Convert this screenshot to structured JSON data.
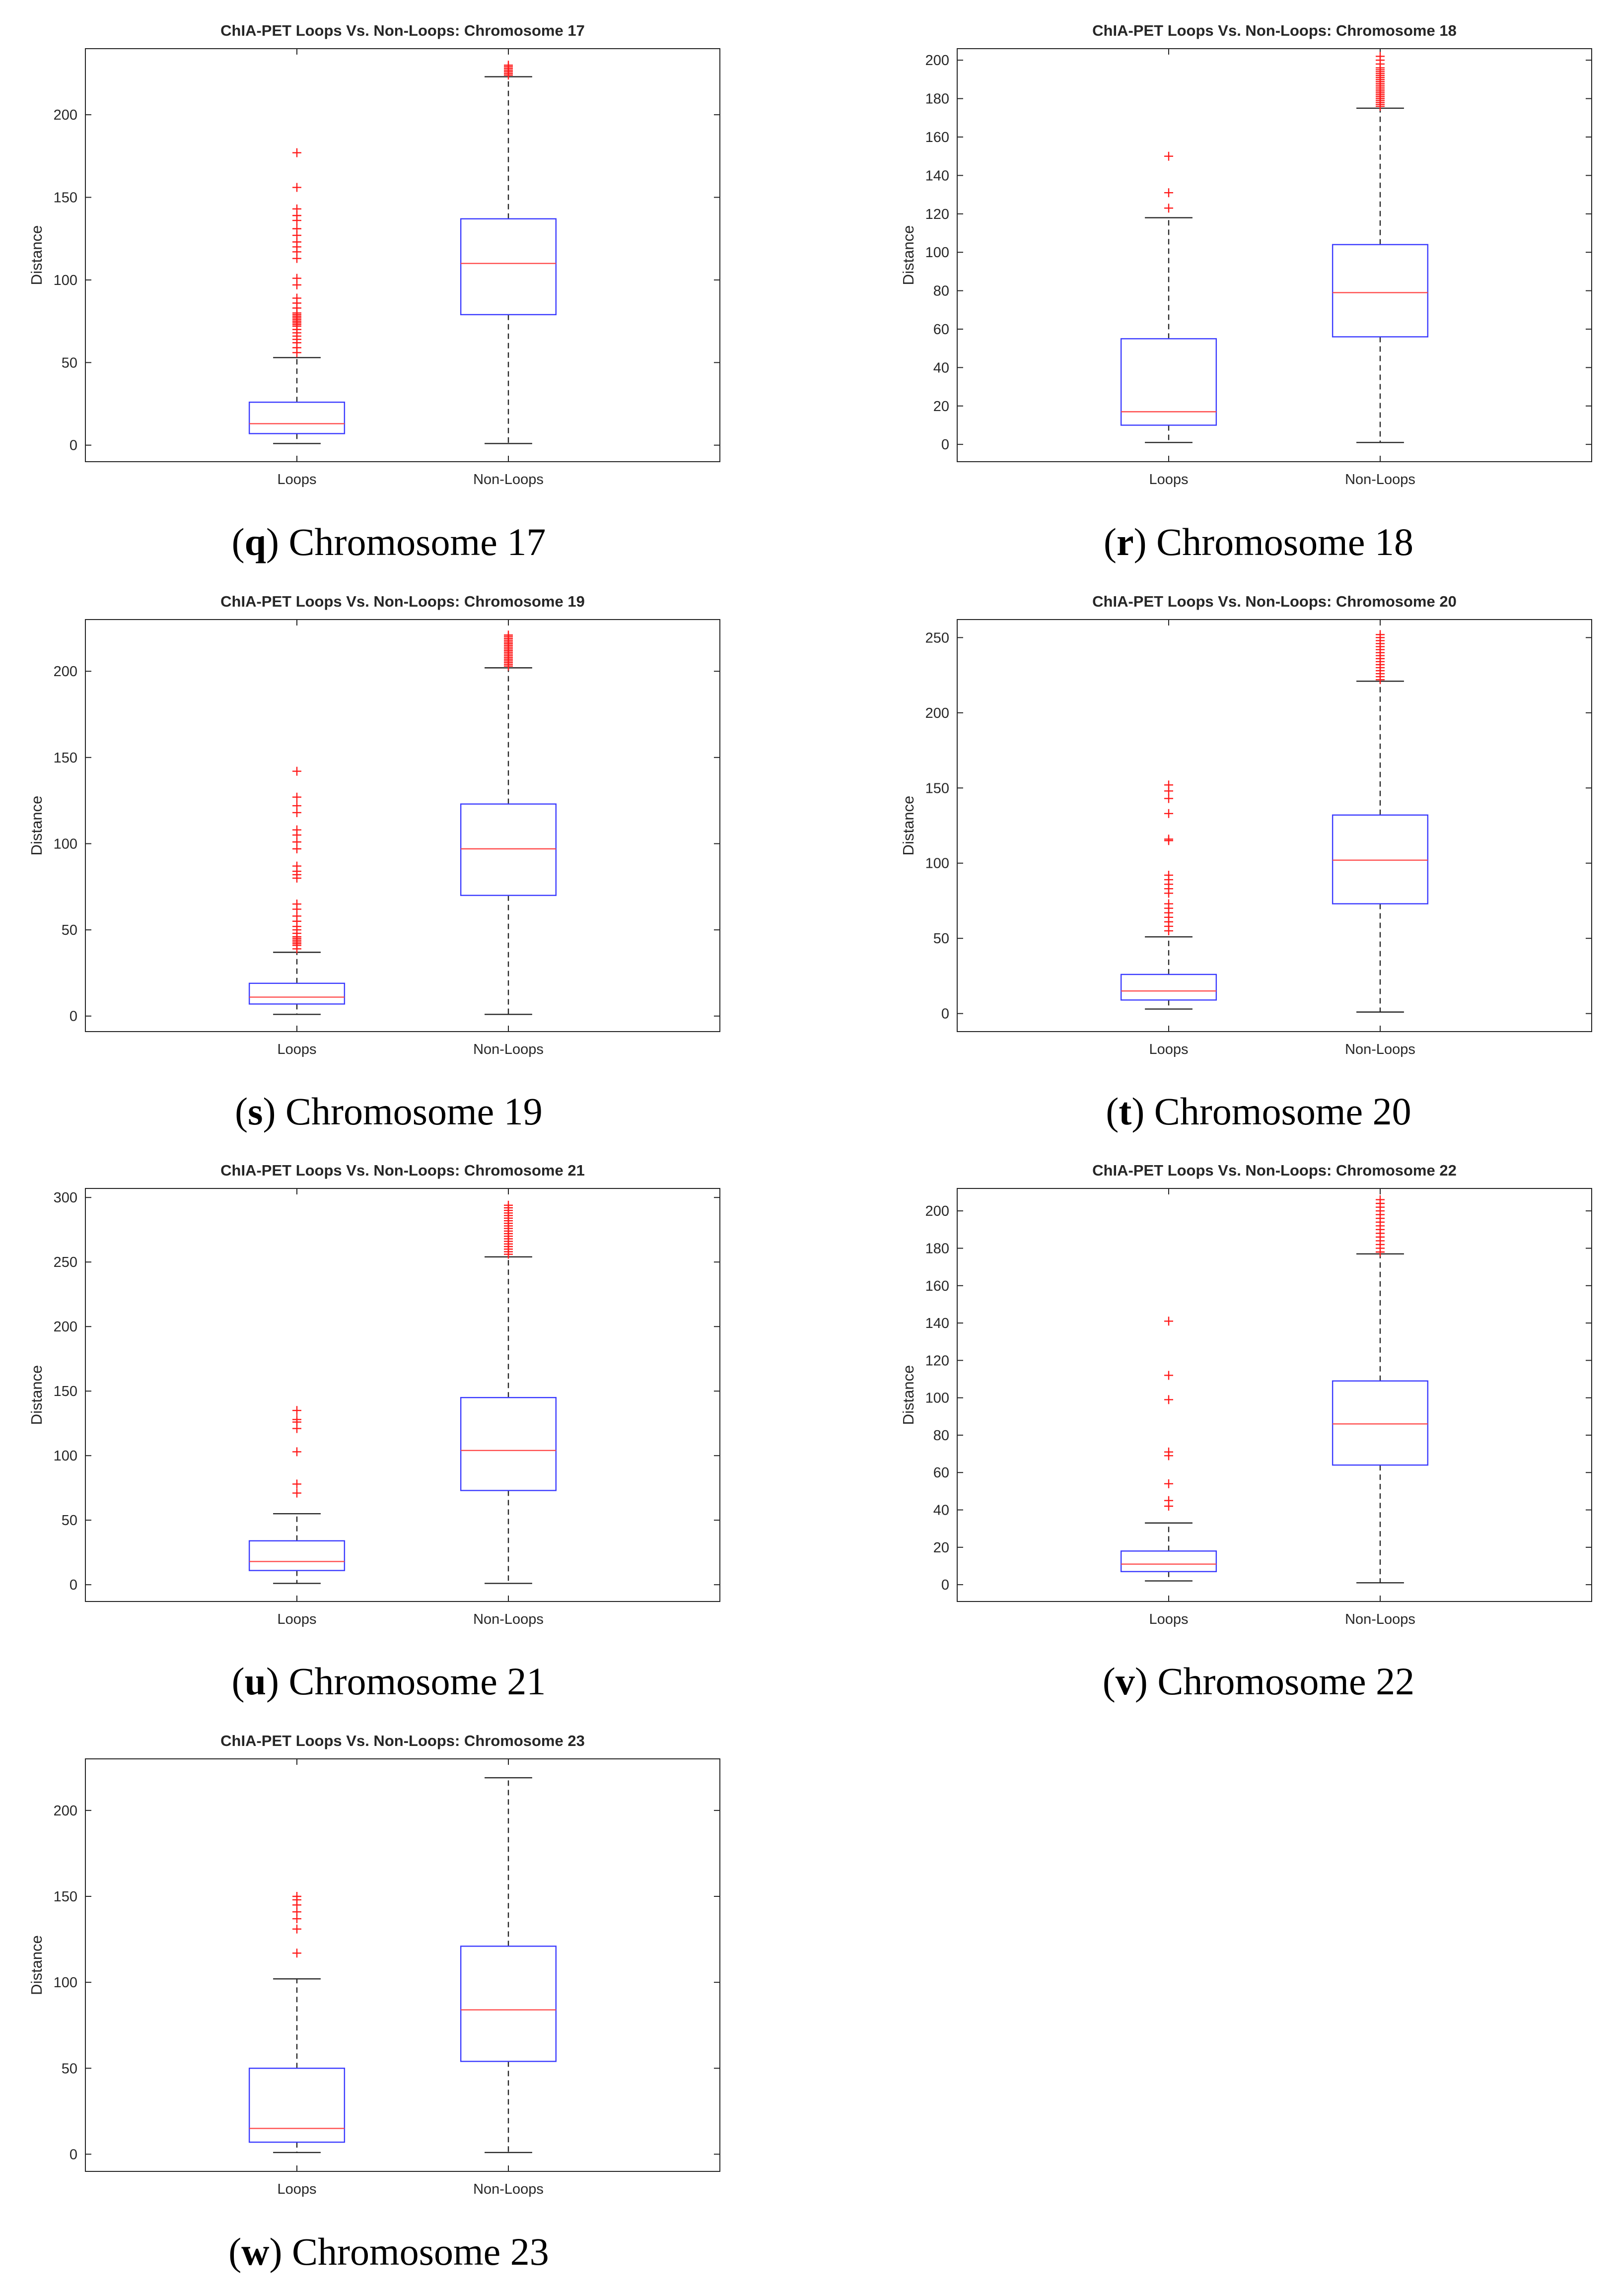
{
  "figure": {
    "captions": [
      {
        "letter": "q",
        "text": "Chromosome 17"
      },
      {
        "letter": "r",
        "text": "Chromosome 18"
      },
      {
        "letter": "s",
        "text": "Chromosome 19"
      },
      {
        "letter": "t",
        "text": "Chromosome 20"
      },
      {
        "letter": "u",
        "text": "Chromosome 21"
      },
      {
        "letter": "v",
        "text": "Chromosome 22"
      },
      {
        "letter": "w",
        "text": "Chromosome 23"
      }
    ]
  },
  "colors": {
    "box": "#3b3bff",
    "median": "#ff4d4d",
    "outlier": "#ff1a1a",
    "axes": "#262626"
  },
  "chart_data": [
    {
      "type": "boxplot",
      "title": "ChIA-PET Loops Vs. Non-Loops: Chromosome 17",
      "xlabel": "",
      "ylabel": "Distance",
      "ylim": [
        -10,
        240
      ],
      "yticks": [
        0,
        50,
        100,
        150,
        200
      ],
      "categories": [
        "Loops",
        "Non-Loops"
      ],
      "series": [
        {
          "name": "Loops",
          "whisker_low": 1,
          "q1": 7,
          "median": 13,
          "q3": 26,
          "whisker_high": 53,
          "outliers": [
            56,
            59,
            62,
            64,
            66,
            68,
            70,
            72,
            73,
            74,
            75,
            76,
            77,
            78,
            79,
            80,
            83,
            86,
            89,
            97,
            101,
            113,
            117,
            120,
            123,
            127,
            131,
            136,
            139,
            143,
            156,
            177
          ]
        },
        {
          "name": "Non-Loops",
          "whisker_low": 1,
          "q1": 79,
          "median": 110,
          "q3": 137,
          "whisker_high": 223,
          "outliers": [
            224,
            225,
            226,
            227,
            228,
            229,
            230
          ]
        }
      ]
    },
    {
      "type": "boxplot",
      "title": "ChIA-PET Loops Vs. Non-Loops: Chromosome 18",
      "xlabel": "",
      "ylabel": "Distance",
      "ylim": [
        -9,
        206
      ],
      "yticks": [
        0,
        20,
        40,
        60,
        80,
        100,
        120,
        140,
        160,
        180,
        200
      ],
      "categories": [
        "Loops",
        "Non-Loops"
      ],
      "series": [
        {
          "name": "Loops",
          "whisker_low": 1,
          "q1": 10,
          "median": 17,
          "q3": 55,
          "whisker_high": 118,
          "outliers": [
            123,
            131,
            150
          ]
        },
        {
          "name": "Non-Loops",
          "whisker_low": 1,
          "q1": 56,
          "median": 79,
          "q3": 104,
          "whisker_high": 175,
          "outliers": [
            176,
            177,
            178,
            179,
            180,
            181,
            182,
            183,
            184,
            185,
            186,
            187,
            188,
            189,
            190,
            191,
            192,
            193,
            194,
            195,
            196,
            198,
            200,
            202
          ]
        }
      ]
    },
    {
      "type": "boxplot",
      "title": "ChIA-PET Loops Vs. Non-Loops: Chromosome 19",
      "xlabel": "",
      "ylabel": "Distance",
      "ylim": [
        -9,
        230
      ],
      "yticks": [
        0,
        50,
        100,
        150,
        200
      ],
      "categories": [
        "Loops",
        "Non-Loops"
      ],
      "series": [
        {
          "name": "Loops",
          "whisker_low": 1,
          "q1": 7,
          "median": 11,
          "q3": 19,
          "whisker_high": 37,
          "outliers": [
            39,
            41,
            42,
            43,
            44,
            45,
            46,
            48,
            50,
            52,
            55,
            58,
            62,
            65,
            80,
            82,
            84,
            87,
            97,
            101,
            105,
            108,
            118,
            122,
            127,
            142
          ]
        },
        {
          "name": "Non-Loops",
          "whisker_low": 1,
          "q1": 70,
          "median": 97,
          "q3": 123,
          "whisker_high": 202,
          "outliers": [
            203,
            204,
            205,
            206,
            207,
            208,
            209,
            210,
            211,
            212,
            213,
            214,
            215,
            216,
            217,
            218,
            219,
            220,
            221
          ]
        }
      ]
    },
    {
      "type": "boxplot",
      "title": "ChIA-PET Loops Vs. Non-Loops: Chromosome 20",
      "xlabel": "",
      "ylabel": "Distance",
      "ylim": [
        -12,
        262
      ],
      "yticks": [
        0,
        50,
        100,
        150,
        200,
        250
      ],
      "categories": [
        "Loops",
        "Non-Loops"
      ],
      "series": [
        {
          "name": "Loops",
          "whisker_low": 3,
          "q1": 9,
          "median": 15,
          "q3": 26,
          "whisker_high": 51,
          "outliers": [
            55,
            58,
            61,
            64,
            67,
            70,
            73,
            80,
            83,
            86,
            89,
            92,
            115,
            116,
            133,
            143,
            148,
            152
          ]
        },
        {
          "name": "Non-Loops",
          "whisker_low": 1,
          "q1": 73,
          "median": 102,
          "q3": 132,
          "whisker_high": 221,
          "outliers": [
            222,
            224,
            226,
            228,
            230,
            232,
            234,
            236,
            238,
            240,
            242,
            244,
            246,
            248,
            250,
            252
          ]
        }
      ]
    },
    {
      "type": "boxplot",
      "title": "ChIA-PET Loops Vs. Non-Loops: Chromosome 21",
      "xlabel": "",
      "ylabel": "Distance",
      "ylim": [
        -13,
        307
      ],
      "yticks": [
        0,
        50,
        100,
        150,
        200,
        250,
        300
      ],
      "categories": [
        "Loops",
        "Non-Loops"
      ],
      "series": [
        {
          "name": "Loops",
          "whisker_low": 1,
          "q1": 11,
          "median": 18,
          "q3": 34,
          "whisker_high": 55,
          "outliers": [
            71,
            78,
            103,
            121,
            126,
            128,
            135
          ]
        },
        {
          "name": "Non-Loops",
          "whisker_low": 1,
          "q1": 73,
          "median": 104,
          "q3": 145,
          "whisker_high": 254,
          "outliers": [
            256,
            258,
            260,
            262,
            264,
            266,
            268,
            270,
            272,
            274,
            276,
            278,
            280,
            282,
            284,
            286,
            288,
            290,
            292,
            294
          ]
        }
      ]
    },
    {
      "type": "boxplot",
      "title": "ChIA-PET Loops Vs. Non-Loops: Chromosome 22",
      "xlabel": "",
      "ylabel": "Distance",
      "ylim": [
        -9,
        212
      ],
      "yticks": [
        0,
        20,
        40,
        60,
        80,
        100,
        120,
        140,
        160,
        180,
        200
      ],
      "categories": [
        "Loops",
        "Non-Loops"
      ],
      "series": [
        {
          "name": "Loops",
          "whisker_low": 2,
          "q1": 7,
          "median": 11,
          "q3": 18,
          "whisker_high": 33,
          "outliers": [
            42,
            45,
            54,
            69,
            71,
            99,
            112,
            141
          ]
        },
        {
          "name": "Non-Loops",
          "whisker_low": 1,
          "q1": 64,
          "median": 86,
          "q3": 109,
          "whisker_high": 177,
          "outliers": [
            178,
            180,
            182,
            184,
            186,
            188,
            190,
            192,
            194,
            196,
            198,
            200,
            202,
            204,
            206
          ]
        }
      ]
    },
    {
      "type": "boxplot",
      "title": "ChIA-PET Loops Vs. Non-Loops: Chromosome 23",
      "xlabel": "",
      "ylabel": "Distance",
      "ylim": [
        -10,
        230
      ],
      "yticks": [
        0,
        50,
        100,
        150,
        200
      ],
      "categories": [
        "Loops",
        "Non-Loops"
      ],
      "series": [
        {
          "name": "Loops",
          "whisker_low": 1,
          "q1": 7,
          "median": 15,
          "q3": 50,
          "whisker_high": 102,
          "outliers": [
            117,
            131,
            137,
            141,
            145,
            148,
            150
          ]
        },
        {
          "name": "Non-Loops",
          "whisker_low": 1,
          "q1": 54,
          "median": 84,
          "q3": 121,
          "whisker_high": 219,
          "outliers": []
        }
      ]
    }
  ]
}
